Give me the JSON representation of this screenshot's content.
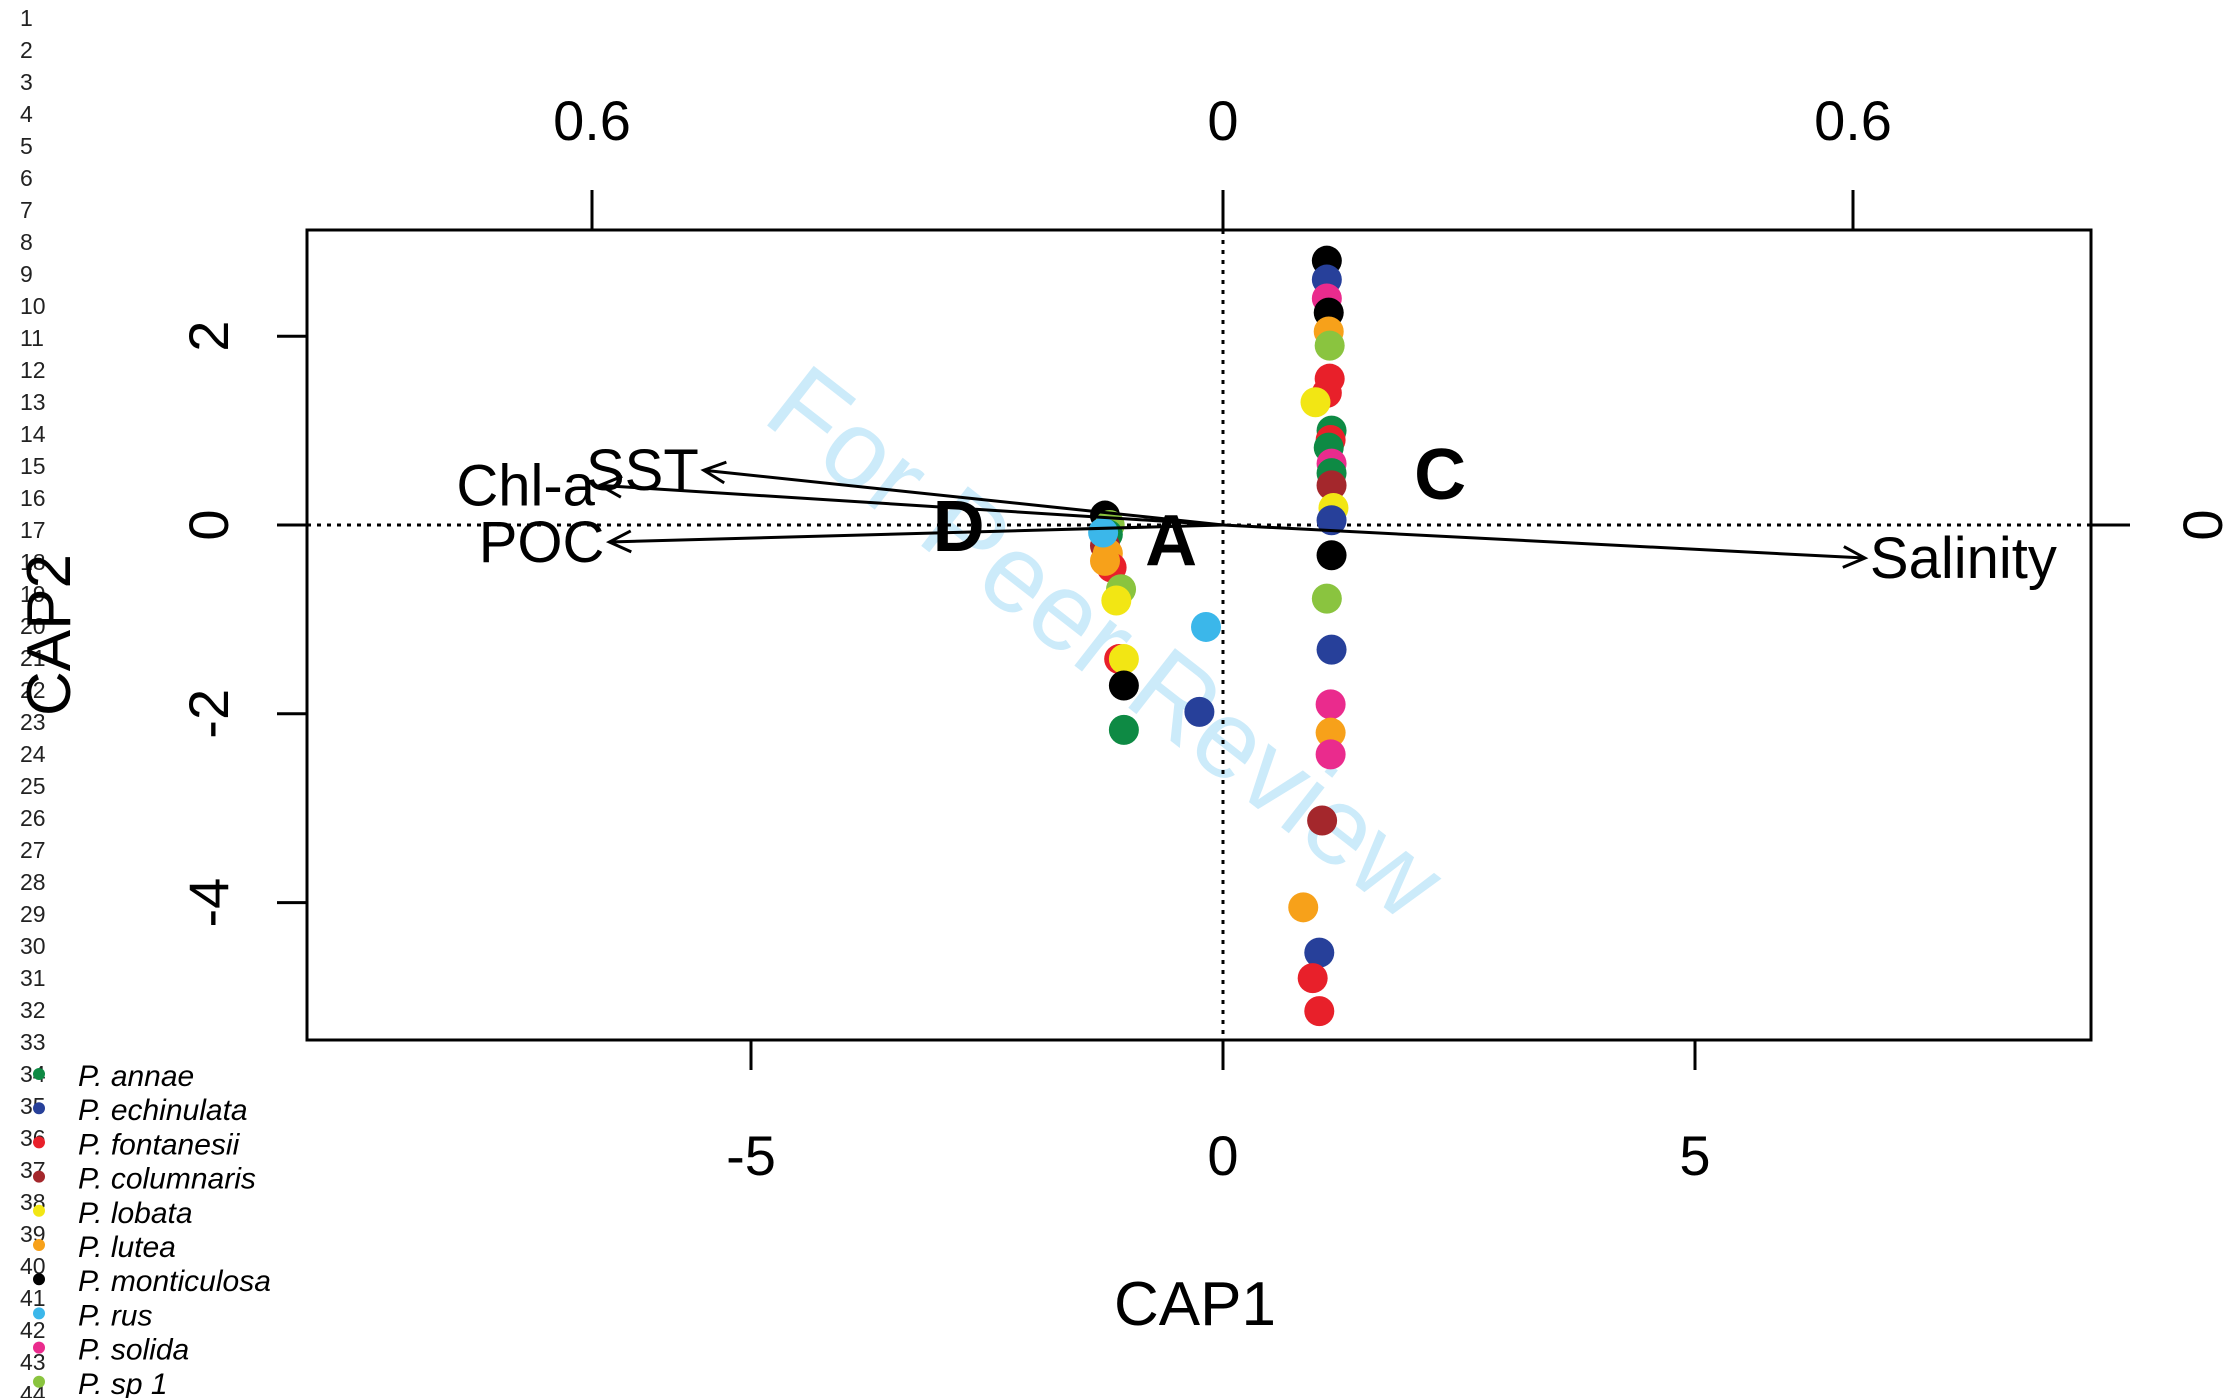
{
  "line_numbers": [
    "1",
    "2",
    "3",
    "4",
    "5",
    "6",
    "7",
    "8",
    "9",
    "10",
    "11",
    "12",
    "13",
    "14",
    "15",
    "16",
    "17",
    "18",
    "19",
    "20",
    "21",
    "22",
    "23",
    "24",
    "25",
    "26",
    "27",
    "28",
    "29",
    "30",
    "31",
    "32",
    "33",
    "34",
    "35",
    "36",
    "37",
    "38",
    "39",
    "40",
    "41",
    "42",
    "43",
    "44"
  ],
  "watermark": "For Peer Review",
  "chart_data": {
    "type": "scatter",
    "xlabel": "CAP1",
    "ylabel": "CAP2",
    "xlim": [
      -9.5,
      9.4
    ],
    "ylim": [
      -5.45,
      3.15
    ],
    "x_ticks": [
      "-5",
      "0",
      "5"
    ],
    "y_ticks": [
      "-4",
      "-2",
      "0",
      "2"
    ],
    "top_axis_ticks": [
      "0.6",
      "0",
      "0.6"
    ],
    "right_axis_ticks": [
      "0"
    ],
    "reference_lines": {
      "x": 0,
      "y": 0,
      "style": "dotted"
    },
    "vectors": [
      {
        "label": "Chl-a",
        "x": -6.6,
        "y": 0.42
      },
      {
        "label": "SST",
        "x": -5.5,
        "y": 0.58
      },
      {
        "label": "POC",
        "x": -6.5,
        "y": -0.18
      },
      {
        "label": "Salinity",
        "x": 6.8,
        "y": -0.35
      }
    ],
    "group_labels": [
      {
        "label": "D",
        "x": -2.8,
        "y": 0.0
      },
      {
        "label": "A",
        "x": -0.55,
        "y": -0.15
      },
      {
        "label": "C",
        "x": 2.3,
        "y": 0.55
      }
    ],
    "species": [
      {
        "name": "P. annae",
        "color": "#0e8a44"
      },
      {
        "name": "P. echinulata",
        "color": "#27409a"
      },
      {
        "name": "P. fontanesii",
        "color": "#e8202a"
      },
      {
        "name": "P. columnaris",
        "color": "#a4272c"
      },
      {
        "name": "P. lobata",
        "color": "#f2e614"
      },
      {
        "name": "P. lutea",
        "color": "#f7a11a"
      },
      {
        "name": "P. monticulosa",
        "color": "#000000"
      },
      {
        "name": "P. rus",
        "color": "#3bb7ea"
      },
      {
        "name": "P. solida",
        "color": "#ea2b8d"
      },
      {
        "name": "P. sp 1",
        "color": "#8ac43f"
      }
    ],
    "points": [
      {
        "x": 1.1,
        "y": 2.8,
        "species": "P. monticulosa"
      },
      {
        "x": 1.1,
        "y": 2.6,
        "species": "P. echinulata"
      },
      {
        "x": 1.1,
        "y": 2.4,
        "species": "P. solida"
      },
      {
        "x": 1.12,
        "y": 2.25,
        "species": "P. monticulosa"
      },
      {
        "x": 1.12,
        "y": 2.05,
        "species": "P. lutea"
      },
      {
        "x": 1.13,
        "y": 1.9,
        "species": "P. sp 1"
      },
      {
        "x": 1.13,
        "y": 1.55,
        "species": "P. fontanesii"
      },
      {
        "x": 1.1,
        "y": 1.4,
        "species": "P. fontanesii"
      },
      {
        "x": 0.98,
        "y": 1.3,
        "species": "P. lobata"
      },
      {
        "x": 1.15,
        "y": 1.0,
        "species": "P. annae"
      },
      {
        "x": 1.14,
        "y": 0.9,
        "species": "P. fontanesii"
      },
      {
        "x": 1.12,
        "y": 0.82,
        "species": "P. annae"
      },
      {
        "x": 1.15,
        "y": 0.65,
        "species": "P. solida"
      },
      {
        "x": 1.15,
        "y": 0.55,
        "species": "P. annae"
      },
      {
        "x": 1.15,
        "y": 0.42,
        "species": "P. columnaris"
      },
      {
        "x": 1.17,
        "y": 0.18,
        "species": "P. lobata"
      },
      {
        "x": 1.15,
        "y": 0.05,
        "species": "P. echinulata"
      },
      {
        "x": 1.15,
        "y": -0.32,
        "species": "P. monticulosa"
      },
      {
        "x": 1.1,
        "y": -0.78,
        "species": "P. sp 1"
      },
      {
        "x": 1.15,
        "y": -1.32,
        "species": "P. echinulata"
      },
      {
        "x": 1.14,
        "y": -1.9,
        "species": "P. solida"
      },
      {
        "x": 1.14,
        "y": -2.2,
        "species": "P. lutea"
      },
      {
        "x": 1.14,
        "y": -2.43,
        "species": "P. solida"
      },
      {
        "x": 1.05,
        "y": -3.13,
        "species": "P. columnaris"
      },
      {
        "x": 0.85,
        "y": -4.05,
        "species": "P. lutea"
      },
      {
        "x": 1.02,
        "y": -4.53,
        "species": "P. echinulata"
      },
      {
        "x": 0.95,
        "y": -4.8,
        "species": "P. fontanesii"
      },
      {
        "x": 1.02,
        "y": -5.15,
        "species": "P. fontanesii"
      },
      {
        "x": -1.25,
        "y": 0.1,
        "species": "P. monticulosa"
      },
      {
        "x": -1.2,
        "y": 0.0,
        "species": "P. sp 1"
      },
      {
        "x": -1.22,
        "y": -0.1,
        "species": "P. annae"
      },
      {
        "x": -1.25,
        "y": -0.22,
        "species": "P. columnaris"
      },
      {
        "x": -1.22,
        "y": -0.3,
        "species": "P. lutea"
      },
      {
        "x": -1.18,
        "y": -0.45,
        "species": "P. fontanesii"
      },
      {
        "x": -1.25,
        "y": -0.38,
        "species": "P. lutea"
      },
      {
        "x": -1.27,
        "y": -0.08,
        "species": "P. rus"
      },
      {
        "x": -1.08,
        "y": -0.68,
        "species": "P. sp 1"
      },
      {
        "x": -1.13,
        "y": -0.8,
        "species": "P. lobata"
      },
      {
        "x": -1.1,
        "y": -1.42,
        "species": "P. fontanesii"
      },
      {
        "x": -1.05,
        "y": -1.42,
        "species": "P. lobata"
      },
      {
        "x": -1.05,
        "y": -1.7,
        "species": "P. monticulosa"
      },
      {
        "x": -1.05,
        "y": -2.17,
        "species": "P. annae"
      },
      {
        "x": -0.18,
        "y": -1.08,
        "species": "P. rus"
      },
      {
        "x": -0.25,
        "y": -1.98,
        "species": "P. echinulata"
      }
    ]
  }
}
